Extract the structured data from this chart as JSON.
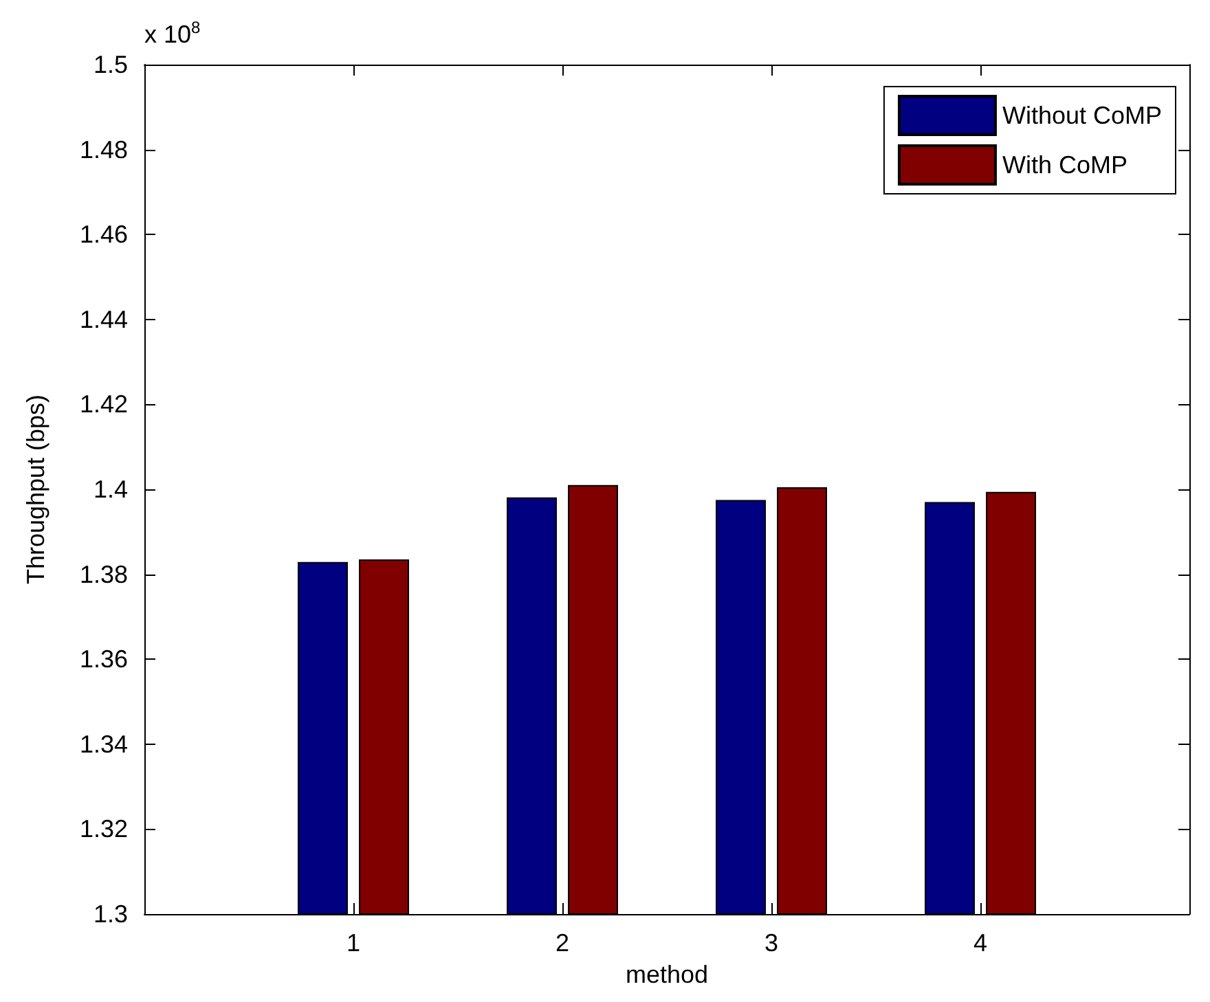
{
  "chart_data": {
    "type": "bar",
    "x": [
      1,
      2,
      3,
      4
    ],
    "xlim": [
      0,
      5
    ],
    "xticks": [
      1,
      2,
      3,
      4
    ],
    "series": [
      {
        "name": "Without CoMP",
        "color": "#000080",
        "values": [
          1.3829,
          1.3981,
          1.3975,
          1.397
        ]
      },
      {
        "name": "With CoMP",
        "color": "#800000",
        "values": [
          1.3835,
          1.401,
          1.4005,
          1.3994
        ]
      }
    ],
    "xlabel": "method",
    "ylabel": "Throughput (bps)",
    "ylim": [
      1.3,
      1.5
    ],
    "yticks": [
      1.3,
      1.32,
      1.34,
      1.36,
      1.38,
      1.4,
      1.42,
      1.44,
      1.46,
      1.48,
      1.5
    ],
    "annotations": [
      "x 10$^{8}$"
    ],
    "grid": false,
    "legend": "top right"
  }
}
